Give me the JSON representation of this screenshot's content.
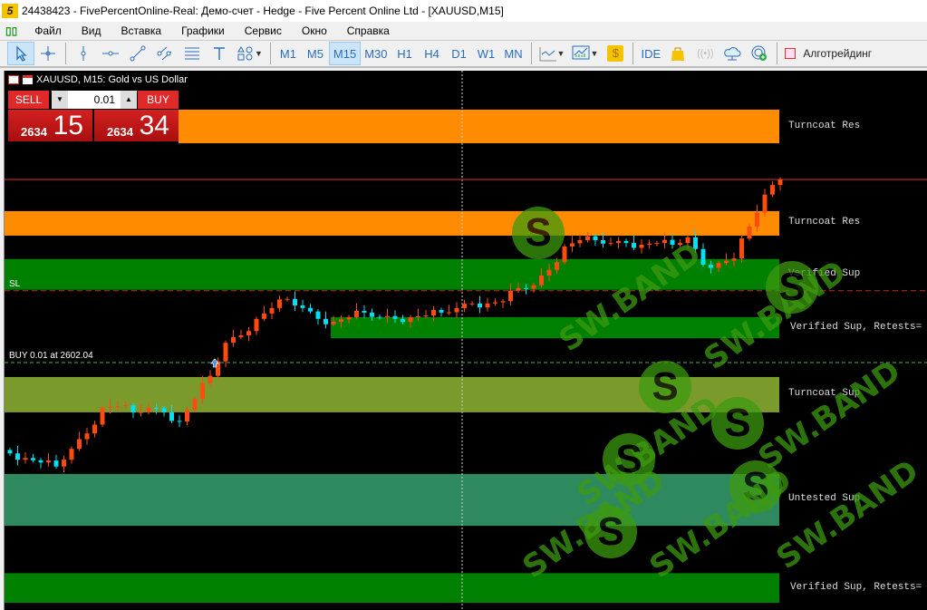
{
  "window": {
    "title": "24438423 - FivePercentOnline-Real: Демо-счет - Hedge - Five Percent Online Ltd - [XAUUSD,M15]",
    "logo": "5"
  },
  "menu": [
    "Файл",
    "Вид",
    "Вставка",
    "Графики",
    "Сервис",
    "Окно",
    "Справка"
  ],
  "toolbar": {
    "timeframes": [
      "M1",
      "M5",
      "M15",
      "M30",
      "H1",
      "H4",
      "D1",
      "W1",
      "MN"
    ],
    "active_timeframe": "M15",
    "ide_label": "IDE",
    "algo_label": "Алготрейдинг",
    "algo_enabled": false
  },
  "chart": {
    "title": "XAUUSD, M15:  Gold vs US Dollar",
    "one_click": {
      "sell_label": "SELL",
      "buy_label": "BUY",
      "lot": "0.01",
      "bid_prefix": "2634",
      "bid_big": "15",
      "ask_prefix": "2634",
      "ask_big": "34"
    },
    "bid_price": 2634.15,
    "sl_label": "SL",
    "sl_price": 2614.8,
    "position_label": "BUY 0.01 at 2602.04",
    "position_price": 2602.04,
    "zones": [
      {
        "label": "Turncoat Res",
        "top": 2646.4,
        "bottom": 2640.5,
        "color": "#ff8c00"
      },
      {
        "label": "Turncoat Res",
        "top": 2628.6,
        "bottom": 2624.3,
        "color": "#ff8c00"
      },
      {
        "label": "Verified Sup",
        "top": 2620.2,
        "bottom": 2614.8,
        "color": "#008000"
      },
      {
        "label": "Verified Sup, Retests=",
        "top": 2610.0,
        "bottom": 2606.3,
        "color": "#008000",
        "partial": true
      },
      {
        "label": "Turncoat Sup",
        "top": 2599.5,
        "bottom": 2593.3,
        "color": "#7a9a2c"
      },
      {
        "label": "Untested Sup",
        "top": 2582.5,
        "bottom": 2573.4,
        "color": "#2e8a5e"
      },
      {
        "label": "Verified Sup, Retests=",
        "top": 2565.1,
        "bottom": 2559.9,
        "color": "#008000"
      }
    ],
    "closes": [
      2586.1,
      2585.3,
      2584.5,
      2583.8,
      2586.9,
      2589.6,
      2594.1,
      2594.4,
      2593.3,
      2594.1,
      2593.3,
      2591.7,
      2595.7,
      2599.7,
      2605.5,
      2606.8,
      2609.7,
      2611.6,
      2613.2,
      2611.6,
      2609.7,
      2609.2,
      2610.0,
      2610.8,
      2610.0,
      2609.7,
      2610.0,
      2610.3,
      2610.8,
      2611.6,
      2612.4,
      2612.4,
      2612.8,
      2615.1,
      2615.6,
      2618.3,
      2622.4,
      2623.5,
      2623.5,
      2623.0,
      2623.0,
      2622.7,
      2623.0,
      2622.7,
      2624.0,
      2619.2,
      2619.5,
      2620.3,
      2625.9,
      2631.5,
      2634.15
    ],
    "candle_colors": {
      "up": "#ff4a10",
      "down": "#00e0f0"
    },
    "watermark": "SW.BAND"
  }
}
